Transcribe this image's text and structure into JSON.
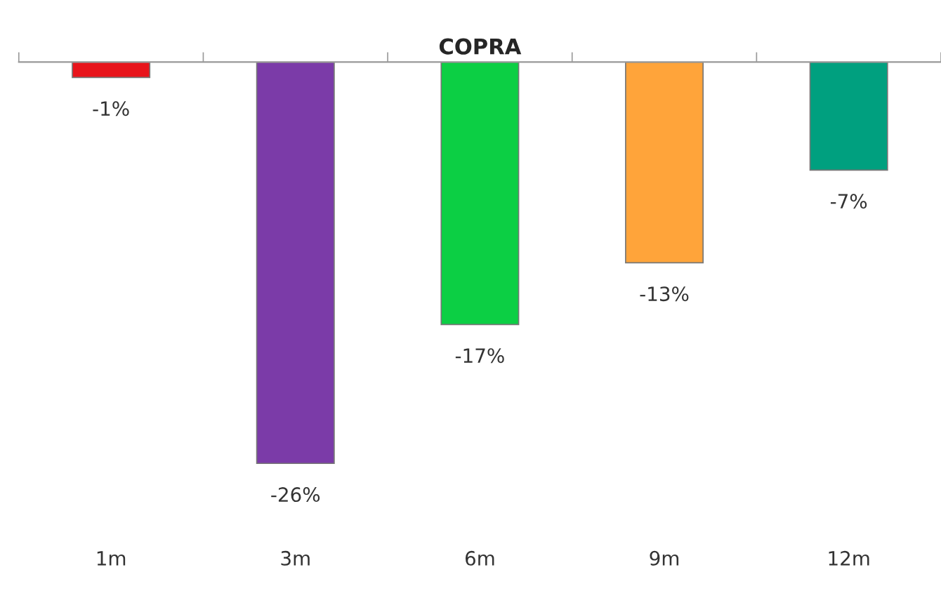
{
  "chart_data": {
    "type": "bar",
    "title": "COPRA",
    "categories": [
      "1m",
      "3m",
      "6m",
      "9m",
      "12m"
    ],
    "values": [
      -1,
      -26,
      -17,
      -13,
      -7
    ],
    "colors": [
      "#e8141b",
      "#7b3ba8",
      "#0ccf44",
      "#ffa43a",
      "#00a07f"
    ],
    "value_labels": [
      "-1%",
      "-26%",
      "-17%",
      "-13%",
      "-7%"
    ],
    "grid": false,
    "legend": false
  }
}
